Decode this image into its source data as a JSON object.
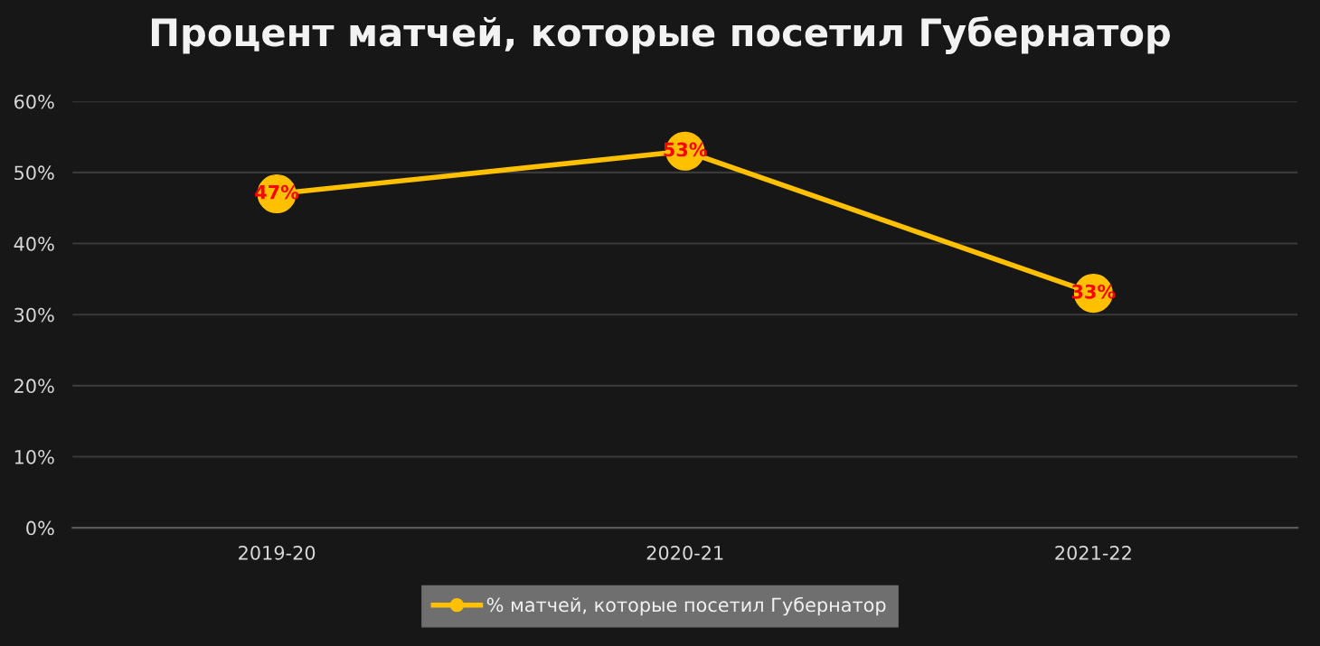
{
  "chart_data": {
    "type": "line",
    "title": "Процент матчей, которые посетил Губернатор",
    "categories": [
      "2019-20",
      "2020-21",
      "2021-22"
    ],
    "series": [
      {
        "name": "% матчей, которые посетил Губернатор",
        "color": "#ffc000",
        "values": [
          47,
          53,
          33
        ],
        "value_labels": [
          "47%",
          "53%",
          "33%"
        ]
      }
    ],
    "ylim": [
      0,
      60
    ],
    "yticks": [
      {
        "value": 0,
        "label": "0%"
      },
      {
        "value": 10,
        "label": "10%"
      },
      {
        "value": 20,
        "label": "20%"
      },
      {
        "value": 30,
        "label": "30%"
      },
      {
        "value": 40,
        "label": "40%"
      },
      {
        "value": 50,
        "label": "50%"
      },
      {
        "value": 60,
        "label": "60%"
      }
    ],
    "grid": "y",
    "legend": "bottom",
    "marker": "circle",
    "line_style": "solid"
  }
}
